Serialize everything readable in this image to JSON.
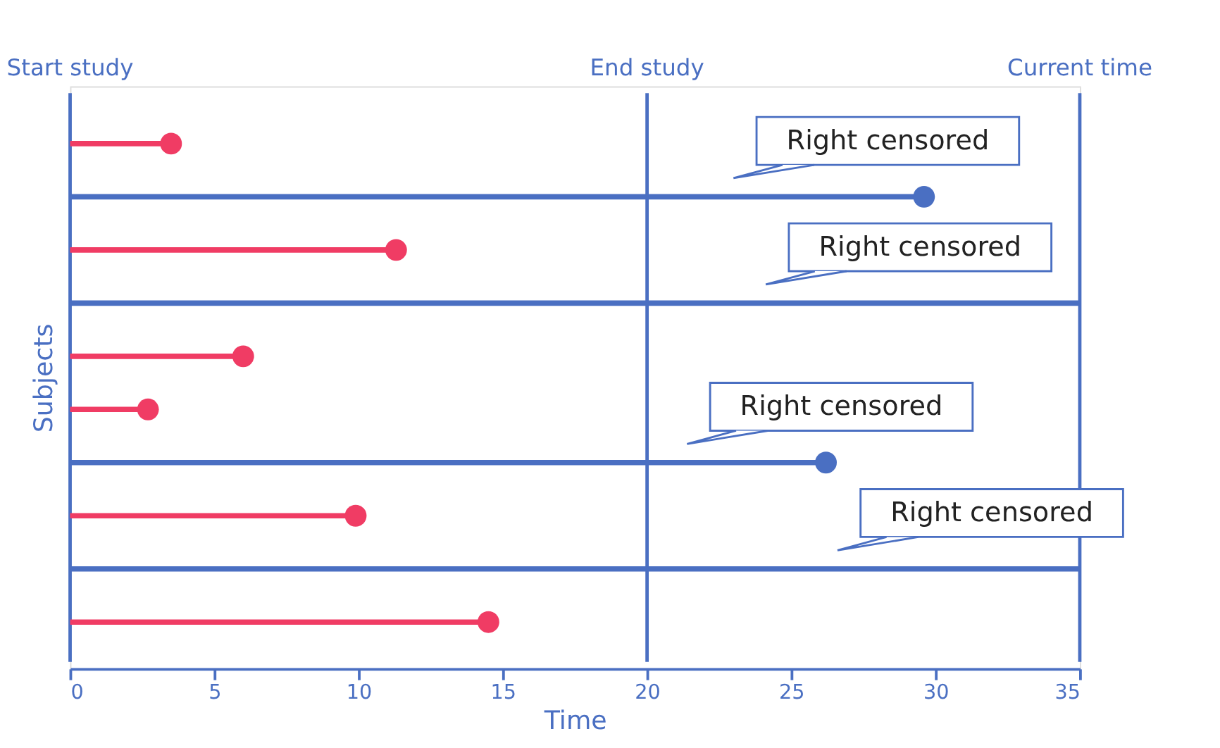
{
  "chart_data": {
    "type": "lollipop",
    "orientation": "horizontal",
    "xlabel": "Time",
    "ylabel": "Subjects",
    "categories": [
      null,
      null,
      null,
      null,
      null,
      null,
      null,
      null,
      null,
      null
    ],
    "series": [
      {
        "color": "#f03c64",
        "marker": "circle",
        "values": [
          3.5,
          null,
          11.3,
          null,
          6.0,
          2.7,
          null,
          9.9,
          null,
          14.5
        ]
      },
      {
        "color": "#4a6fc2",
        "marker": "circle",
        "values": [
          null,
          29.6,
          null,
          null,
          null,
          null,
          26.2,
          null,
          null,
          null
        ]
      },
      {
        "color": "#4a6fc2",
        "type": "bar",
        "values": [
          null,
          null,
          null,
          35,
          null,
          null,
          null,
          null,
          35,
          null
        ]
      }
    ],
    "xlim": [
      0,
      35
    ],
    "xticks": [
      0,
      5,
      10,
      15,
      20,
      25,
      30,
      35
    ],
    "tick_labels": "x",
    "grid": false,
    "ref_lines": [
      {
        "axis": "x",
        "value": 0,
        "label": "Start study",
        "color": "#4a6fc2"
      },
      {
        "axis": "x",
        "value": 20,
        "label": "End study",
        "color": "#4a6fc2"
      },
      {
        "axis": "x",
        "value": 35,
        "label": "Current time",
        "color": "#4a6fc2"
      }
    ],
    "annotations": [
      "Right censored",
      "Right censored",
      "Right censored",
      "Right censored"
    ]
  }
}
